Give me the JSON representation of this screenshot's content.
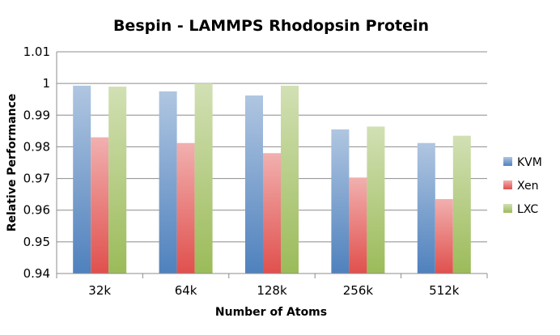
{
  "chart_data": {
    "type": "bar",
    "title": "Bespin - LAMMPS Rhodopsin Protein",
    "xlabel": "Number of Atoms",
    "ylabel": "Relative Performance",
    "categories": [
      "32k",
      "64k",
      "128k",
      "256k",
      "512k"
    ],
    "series": [
      {
        "name": "KVM",
        "values": [
          0.9993,
          0.9975,
          0.9962,
          0.9855,
          0.9812
        ],
        "color": "#4F81BD"
      },
      {
        "name": "Xen",
        "values": [
          0.983,
          0.9812,
          0.978,
          0.9703,
          0.9635
        ],
        "color": "#E0504D"
      },
      {
        "name": "LXC",
        "values": [
          0.999,
          1.0,
          0.9993,
          0.9864,
          0.9835
        ],
        "color": "#9BBB59"
      }
    ],
    "ylim": [
      0.94,
      1.01
    ],
    "yticks": [
      "0.94",
      "0.95",
      "0.96",
      "0.97",
      "0.98",
      "0.99",
      "1",
      "1.01"
    ],
    "ytick_values": [
      0.94,
      0.95,
      0.96,
      0.97,
      0.98,
      0.99,
      1.0,
      1.01
    ],
    "grid": true,
    "legend": "right"
  }
}
